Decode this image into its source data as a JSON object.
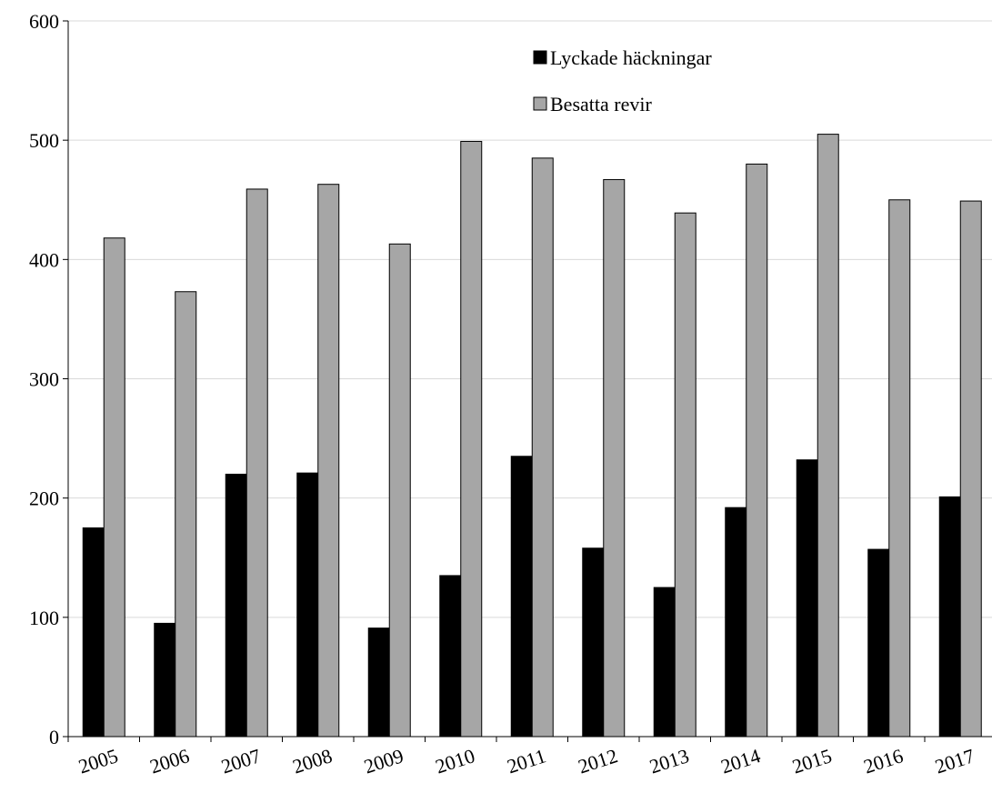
{
  "chart_data": {
    "type": "bar",
    "categories": [
      "2005",
      "2006",
      "2007",
      "2008",
      "2009",
      "2010",
      "2011",
      "2012",
      "2013",
      "2014",
      "2015",
      "2016",
      "2017"
    ],
    "series": [
      {
        "name": "Lyckade häckningar",
        "color": "#000000",
        "values": [
          175,
          95,
          220,
          221,
          91,
          135,
          235,
          158,
          125,
          192,
          232,
          157,
          201
        ]
      },
      {
        "name": "Besatta revir",
        "color": "#a6a6a6",
        "values": [
          418,
          373,
          459,
          463,
          413,
          499,
          485,
          467,
          439,
          480,
          505,
          450,
          449
        ]
      }
    ],
    "yticks": [
      "0",
      "100",
      "200",
      "300",
      "400",
      "500",
      "600"
    ],
    "ylim": [
      0,
      600
    ],
    "grid": true,
    "legend_position": "top-center",
    "title": "",
    "xlabel": "",
    "ylabel": ""
  }
}
